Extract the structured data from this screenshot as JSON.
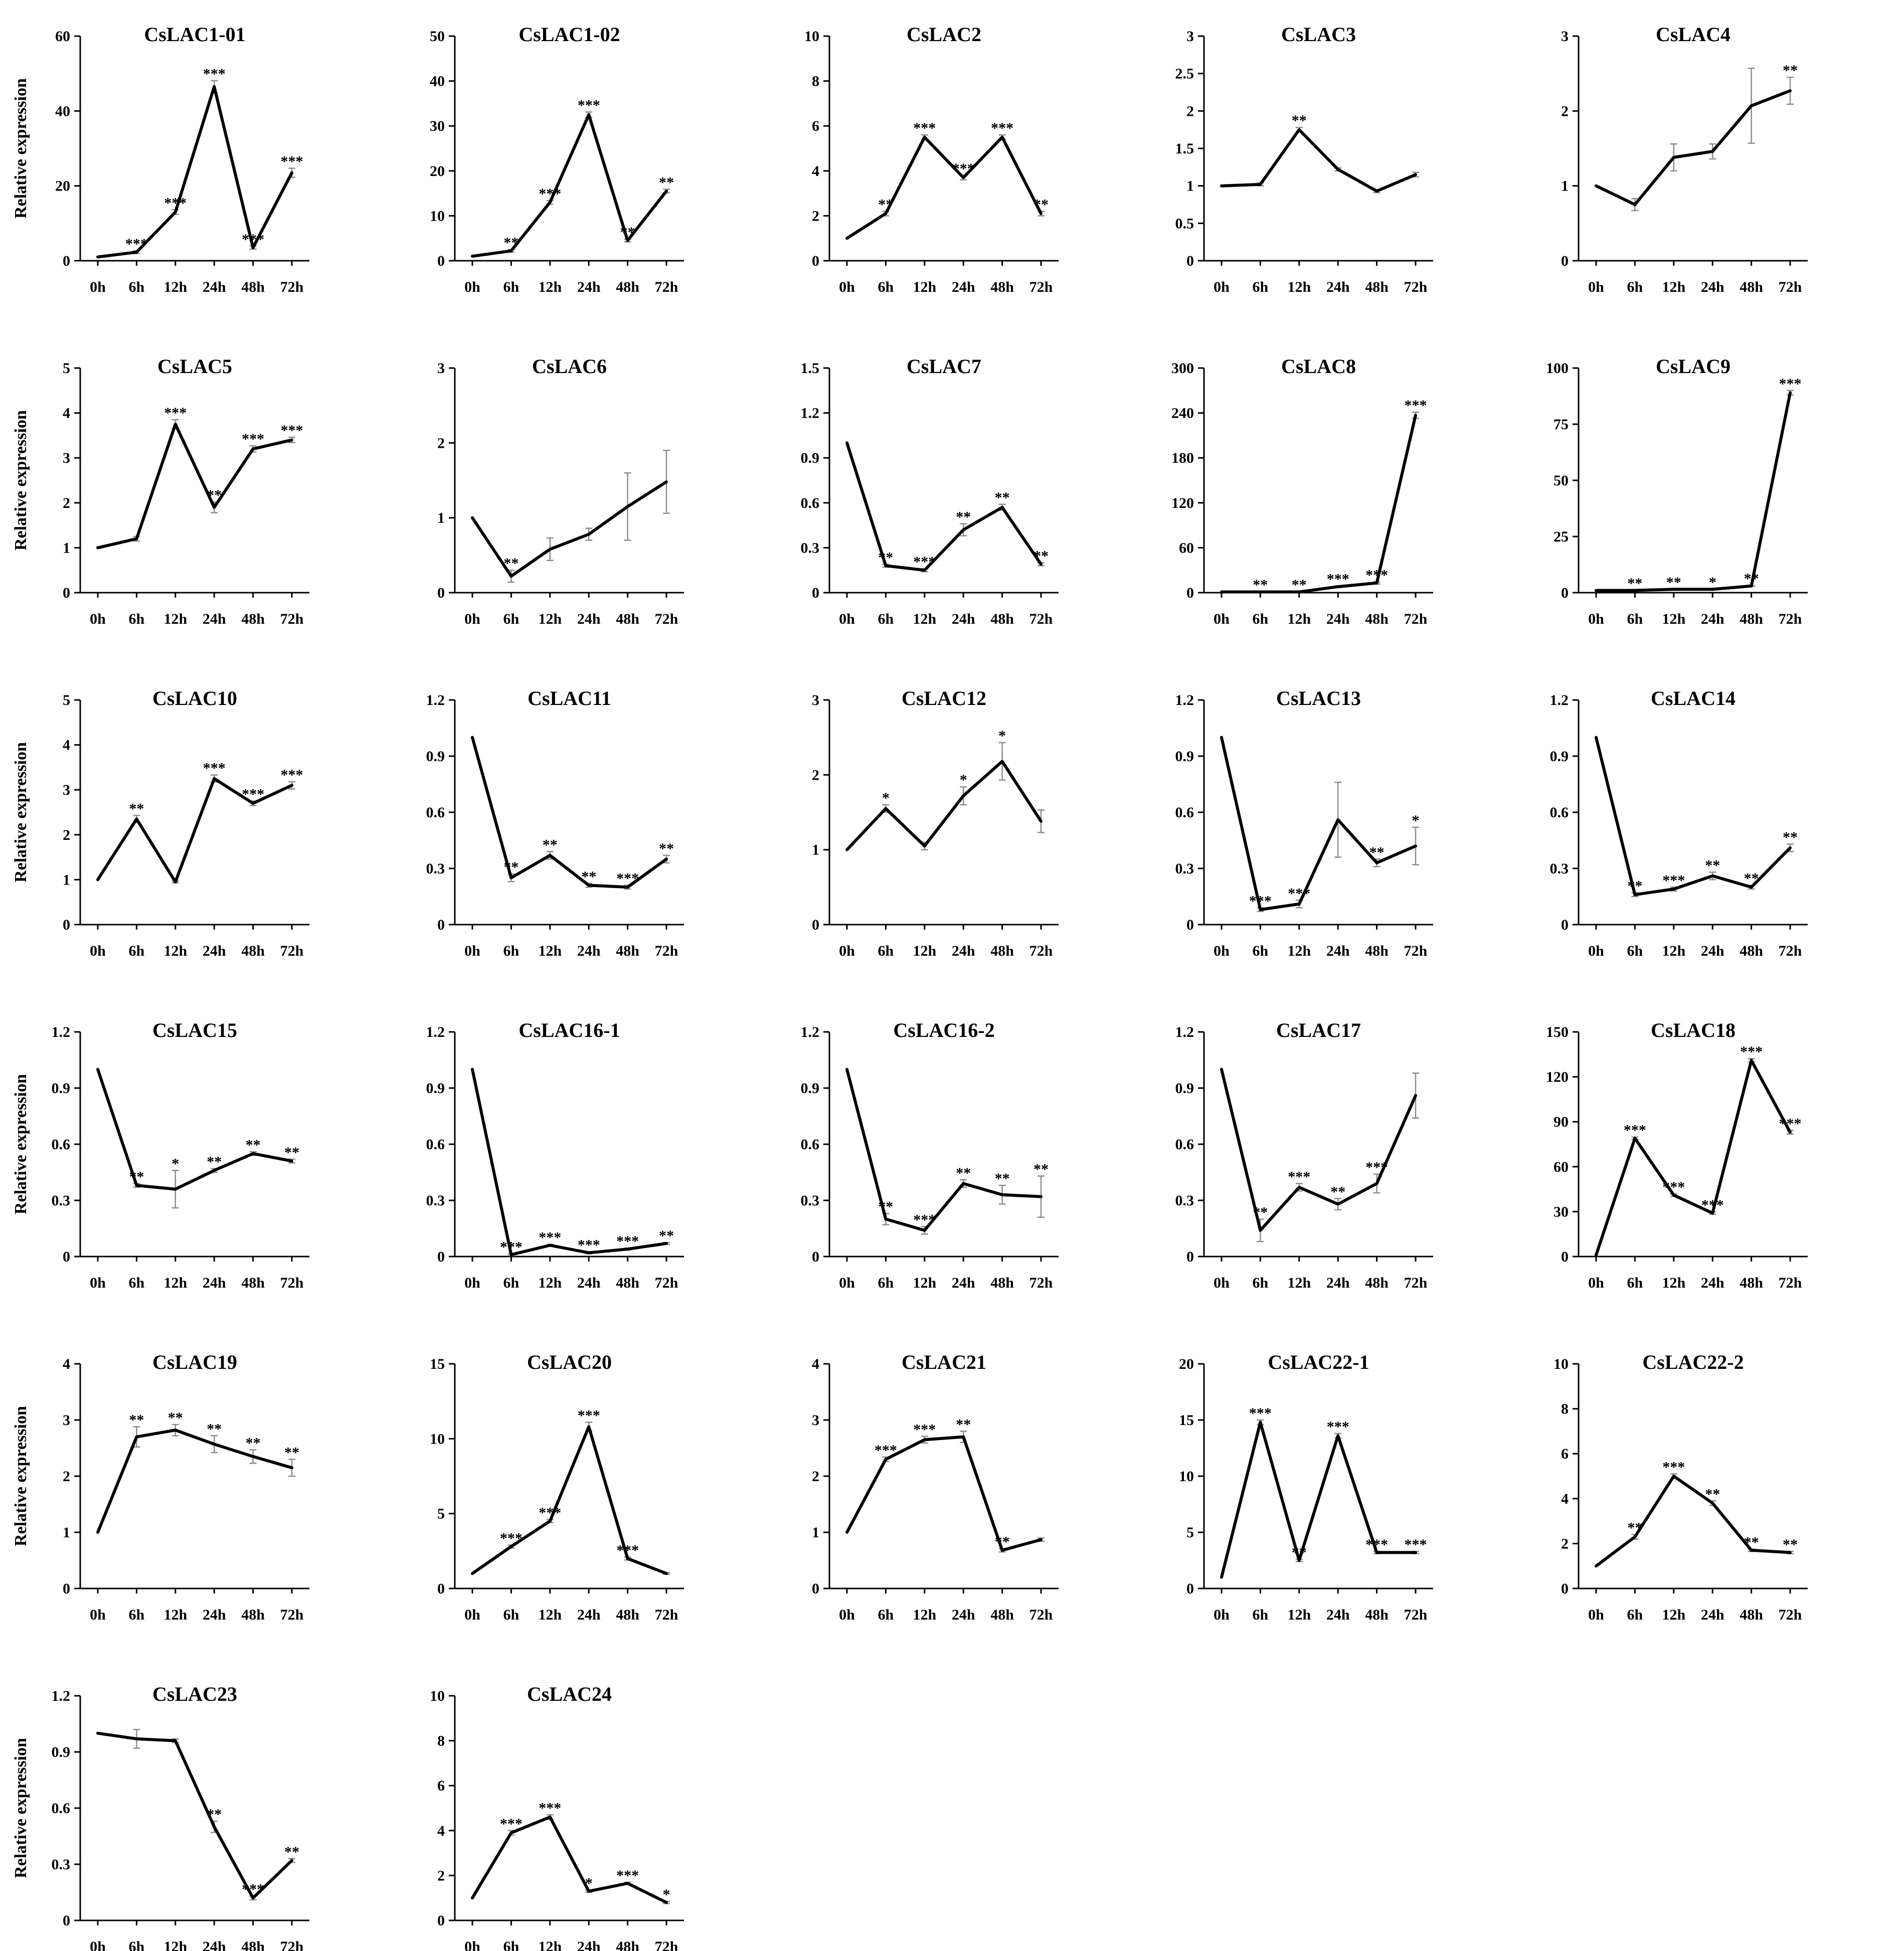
{
  "chart_data": [
    {
      "type": "line",
      "title": "CsLAC1-01",
      "ylabel": "Relative expression",
      "categories": [
        "0h",
        "6h",
        "12h",
        "24h",
        "48h",
        "72h"
      ],
      "ylim": [
        0,
        60
      ],
      "yticks": [
        0,
        20,
        40,
        60
      ],
      "values": [
        1,
        2.3,
        13,
        46.5,
        3.5,
        23.5
      ],
      "errors": [
        0,
        0.4,
        0.6,
        1.6,
        0.4,
        1.2
      ],
      "significance": [
        "",
        "***",
        "***",
        "***",
        "***",
        "***"
      ]
    },
    {
      "type": "line",
      "title": "CsLAC1-02",
      "ylabel": "",
      "categories": [
        "0h",
        "6h",
        "12h",
        "24h",
        "48h",
        "72h"
      ],
      "ylim": [
        0,
        50
      ],
      "yticks": [
        0,
        10,
        20,
        30,
        40,
        50
      ],
      "values": [
        1,
        2.2,
        13,
        32.5,
        4.5,
        15.5
      ],
      "errors": [
        0,
        0.3,
        0.4,
        0.6,
        0.3,
        0.4
      ],
      "significance": [
        "",
        "**",
        "***",
        "***",
        "**",
        "**"
      ]
    },
    {
      "type": "line",
      "title": "CsLAC2",
      "ylabel": "",
      "categories": [
        "0h",
        "6h",
        "12h",
        "24h",
        "48h",
        "72h"
      ],
      "ylim": [
        0,
        10
      ],
      "yticks": [
        0,
        2,
        4,
        6,
        8,
        10
      ],
      "values": [
        1,
        2.1,
        5.5,
        3.7,
        5.5,
        2.1
      ],
      "errors": [
        0,
        0.1,
        0.1,
        0.1,
        0.1,
        0.1
      ],
      "significance": [
        "",
        "**",
        "***",
        "***",
        "***",
        "**"
      ]
    },
    {
      "type": "line",
      "title": "CsLAC3",
      "ylabel": "",
      "categories": [
        "0h",
        "6h",
        "12h",
        "24h",
        "48h",
        "72h"
      ],
      "ylim": [
        0,
        3
      ],
      "yticks": [
        0,
        0.5,
        1,
        1.5,
        2,
        2.5,
        3
      ],
      "values": [
        1,
        1.02,
        1.75,
        1.22,
        0.93,
        1.15
      ],
      "errors": [
        0,
        0.02,
        0.03,
        0.02,
        0.02,
        0.03
      ],
      "significance": [
        "",
        "",
        "**",
        "",
        "",
        ""
      ]
    },
    {
      "type": "line",
      "title": "CsLAC4",
      "ylabel": "",
      "categories": [
        "0h",
        "6h",
        "12h",
        "24h",
        "48h",
        "72h"
      ],
      "ylim": [
        0,
        3
      ],
      "yticks": [
        0,
        1,
        2,
        3
      ],
      "values": [
        1,
        0.75,
        1.38,
        1.46,
        2.07,
        2.27
      ],
      "errors": [
        0,
        0.08,
        0.18,
        0.1,
        0.5,
        0.18
      ],
      "significance": [
        "",
        "",
        "",
        "",
        "",
        "**"
      ]
    },
    {
      "type": "line",
      "title": "CsLAC5",
      "ylabel": "Relative expression",
      "categories": [
        "0h",
        "6h",
        "12h",
        "24h",
        "48h",
        "72h"
      ],
      "ylim": [
        0,
        5
      ],
      "yticks": [
        0,
        1,
        2,
        3,
        4,
        5
      ],
      "values": [
        1,
        1.2,
        3.75,
        1.9,
        3.2,
        3.4
      ],
      "errors": [
        0,
        0.05,
        0.1,
        0.12,
        0.07,
        0.06
      ],
      "significance": [
        "",
        "",
        "***",
        "**",
        "***",
        "***"
      ]
    },
    {
      "type": "line",
      "title": "CsLAC6",
      "ylabel": "",
      "categories": [
        "0h",
        "6h",
        "12h",
        "24h",
        "48h",
        "72h"
      ],
      "ylim": [
        0,
        3
      ],
      "yticks": [
        0,
        1,
        2,
        3
      ],
      "values": [
        1,
        0.22,
        0.58,
        0.78,
        1.15,
        1.48
      ],
      "errors": [
        0,
        0.08,
        0.15,
        0.08,
        0.45,
        0.42
      ],
      "significance": [
        "",
        "**",
        "",
        "",
        "",
        ""
      ]
    },
    {
      "type": "line",
      "title": "CsLAC7",
      "ylabel": "",
      "categories": [
        "0h",
        "6h",
        "12h",
        "24h",
        "48h",
        "72h"
      ],
      "ylim": [
        0,
        1.5
      ],
      "yticks": [
        0,
        0.3,
        0.6,
        0.9,
        1.2,
        1.5
      ],
      "values": [
        1,
        0.18,
        0.15,
        0.42,
        0.57,
        0.19
      ],
      "errors": [
        0,
        0.01,
        0.01,
        0.04,
        0.02,
        0.01
      ],
      "significance": [
        "",
        "**",
        "***",
        "**",
        "**",
        "**"
      ]
    },
    {
      "type": "line",
      "title": "CsLAC8",
      "ylabel": "",
      "categories": [
        "0h",
        "6h",
        "12h",
        "24h",
        "48h",
        "72h"
      ],
      "ylim": [
        0,
        300
      ],
      "yticks": [
        0,
        60,
        120,
        180,
        240,
        300
      ],
      "values": [
        1,
        1,
        1,
        8,
        13,
        237
      ],
      "errors": [
        0,
        0.2,
        0.2,
        1,
        1.5,
        4
      ],
      "significance": [
        "",
        "**",
        "**",
        "***",
        "***",
        "***"
      ]
    },
    {
      "type": "line",
      "title": "CsLAC9",
      "ylabel": "",
      "categories": [
        "0h",
        "6h",
        "12h",
        "24h",
        "48h",
        "72h"
      ],
      "ylim": [
        0,
        100
      ],
      "yticks": [
        0,
        25,
        50,
        75,
        100
      ],
      "values": [
        1,
        1,
        1.5,
        1.5,
        3,
        89
      ],
      "errors": [
        0,
        0.1,
        0.1,
        0.1,
        0.2,
        1
      ],
      "significance": [
        "",
        "**",
        "**",
        "*",
        "**",
        "***"
      ]
    },
    {
      "type": "line",
      "title": "CsLAC10",
      "ylabel": "Relative expression",
      "categories": [
        "0h",
        "6h",
        "12h",
        "24h",
        "48h",
        "72h"
      ],
      "ylim": [
        0,
        5
      ],
      "yticks": [
        0,
        1,
        2,
        3,
        4,
        5
      ],
      "values": [
        1,
        2.35,
        0.95,
        3.25,
        2.7,
        3.1
      ],
      "errors": [
        0,
        0.08,
        0.02,
        0.08,
        0.05,
        0.08
      ],
      "significance": [
        "",
        "**",
        "",
        "***",
        "***",
        "***"
      ]
    },
    {
      "type": "line",
      "title": "CsLAC11",
      "ylabel": "",
      "categories": [
        "0h",
        "6h",
        "12h",
        "24h",
        "48h",
        "72h"
      ],
      "ylim": [
        0,
        1.2
      ],
      "yticks": [
        0,
        0.3,
        0.6,
        0.9,
        1.2
      ],
      "values": [
        1,
        0.25,
        0.37,
        0.21,
        0.2,
        0.35
      ],
      "errors": [
        0,
        0.02,
        0.02,
        0.01,
        0.01,
        0.02
      ],
      "significance": [
        "",
        "**",
        "**",
        "**",
        "***",
        "**"
      ]
    },
    {
      "type": "line",
      "title": "CsLAC12",
      "ylabel": "",
      "categories": [
        "0h",
        "6h",
        "12h",
        "24h",
        "48h",
        "72h"
      ],
      "ylim": [
        0,
        3
      ],
      "yticks": [
        0,
        1,
        2,
        3
      ],
      "values": [
        1,
        1.55,
        1.05,
        1.72,
        2.18,
        1.38
      ],
      "errors": [
        0,
        0.05,
        0.05,
        0.12,
        0.25,
        0.15
      ],
      "significance": [
        "",
        "*",
        "",
        "*",
        "*",
        ""
      ]
    },
    {
      "type": "line",
      "title": "CsLAC13",
      "ylabel": "",
      "categories": [
        "0h",
        "6h",
        "12h",
        "24h",
        "48h",
        "72h"
      ],
      "ylim": [
        0,
        1.2
      ],
      "yticks": [
        0,
        0.3,
        0.6,
        0.9,
        1.2
      ],
      "values": [
        1,
        0.08,
        0.11,
        0.56,
        0.33,
        0.42
      ],
      "errors": [
        0,
        0.01,
        0.02,
        0.2,
        0.02,
        0.1
      ],
      "significance": [
        "",
        "***",
        "***",
        "",
        "**",
        "*"
      ]
    },
    {
      "type": "line",
      "title": "CsLAC14",
      "ylabel": "",
      "categories": [
        "0h",
        "6h",
        "12h",
        "24h",
        "48h",
        "72h"
      ],
      "ylim": [
        0,
        1.2
      ],
      "yticks": [
        0,
        0.3,
        0.6,
        0.9,
        1.2
      ],
      "values": [
        1,
        0.16,
        0.19,
        0.26,
        0.2,
        0.41
      ],
      "errors": [
        0,
        0.01,
        0.01,
        0.02,
        0.01,
        0.02
      ],
      "significance": [
        "",
        "**",
        "***",
        "**",
        "**",
        "**"
      ]
    },
    {
      "type": "line",
      "title": "CsLAC15",
      "ylabel": "Relative expression",
      "categories": [
        "0h",
        "6h",
        "12h",
        "24h",
        "48h",
        "72h"
      ],
      "ylim": [
        0,
        1.2
      ],
      "yticks": [
        0,
        0.3,
        0.6,
        0.9,
        1.2
      ],
      "values": [
        1,
        0.38,
        0.36,
        0.46,
        0.55,
        0.51
      ],
      "errors": [
        0,
        0.01,
        0.1,
        0.01,
        0.01,
        0.01
      ],
      "significance": [
        "",
        "**",
        "*",
        "**",
        "**",
        "**"
      ]
    },
    {
      "type": "line",
      "title": "CsLAC16-1",
      "ylabel": "",
      "categories": [
        "0h",
        "6h",
        "12h",
        "24h",
        "48h",
        "72h"
      ],
      "ylim": [
        0,
        1.2
      ],
      "yticks": [
        0,
        0.3,
        0.6,
        0.9,
        1.2
      ],
      "values": [
        1,
        0.01,
        0.06,
        0.02,
        0.04,
        0.07
      ],
      "errors": [
        0,
        0.005,
        0.005,
        0.005,
        0.005,
        0.005
      ],
      "significance": [
        "",
        "***",
        "***",
        "***",
        "***",
        "**"
      ]
    },
    {
      "type": "line",
      "title": "CsLAC16-2",
      "ylabel": "",
      "categories": [
        "0h",
        "6h",
        "12h",
        "24h",
        "48h",
        "72h"
      ],
      "ylim": [
        0,
        1.2
      ],
      "yticks": [
        0,
        0.3,
        0.6,
        0.9,
        1.2
      ],
      "values": [
        1,
        0.2,
        0.14,
        0.39,
        0.33,
        0.32
      ],
      "errors": [
        0,
        0.03,
        0.02,
        0.02,
        0.05,
        0.11
      ],
      "significance": [
        "",
        "**",
        "***",
        "**",
        "**",
        "**"
      ]
    },
    {
      "type": "line",
      "title": "CsLAC17",
      "ylabel": "",
      "categories": [
        "0h",
        "6h",
        "12h",
        "24h",
        "48h",
        "72h"
      ],
      "ylim": [
        0,
        1.2
      ],
      "yticks": [
        0,
        0.3,
        0.6,
        0.9,
        1.2
      ],
      "values": [
        1,
        0.14,
        0.37,
        0.28,
        0.39,
        0.86
      ],
      "errors": [
        0,
        0.06,
        0.02,
        0.03,
        0.05,
        0.12
      ],
      "significance": [
        "",
        "**",
        "***",
        "**",
        "***",
        ""
      ]
    },
    {
      "type": "line",
      "title": "CsLAC18",
      "ylabel": "",
      "categories": [
        "0h",
        "6h",
        "12h",
        "24h",
        "48h",
        "72h"
      ],
      "ylim": [
        0,
        150
      ],
      "yticks": [
        0,
        30,
        60,
        90,
        120,
        150
      ],
      "values": [
        1,
        79,
        41,
        29,
        131,
        83
      ],
      "errors": [
        0,
        0.8,
        0.8,
        0.8,
        1.2,
        1.2
      ],
      "significance": [
        "",
        "***",
        "***",
        "***",
        "***",
        "***"
      ]
    },
    {
      "type": "line",
      "title": "CsLAC19",
      "ylabel": "Relative expression",
      "categories": [
        "0h",
        "6h",
        "12h",
        "24h",
        "48h",
        "72h"
      ],
      "ylim": [
        0,
        4
      ],
      "yticks": [
        0,
        1,
        2,
        3,
        4
      ],
      "values": [
        1,
        2.7,
        2.82,
        2.57,
        2.35,
        2.15
      ],
      "errors": [
        0,
        0.18,
        0.1,
        0.15,
        0.12,
        0.15
      ],
      "significance": [
        "",
        "**",
        "**",
        "**",
        "**",
        "**"
      ]
    },
    {
      "type": "line",
      "title": "CsLAC20",
      "ylabel": "",
      "categories": [
        "0h",
        "6h",
        "12h",
        "24h",
        "48h",
        "72h"
      ],
      "ylim": [
        0,
        15
      ],
      "yticks": [
        0,
        5,
        10,
        15
      ],
      "values": [
        1,
        2.8,
        4.5,
        10.8,
        2,
        1
      ],
      "errors": [
        0,
        0.1,
        0.1,
        0.3,
        0.1,
        0.05
      ],
      "significance": [
        "",
        "***",
        "***",
        "***",
        "***",
        ""
      ]
    },
    {
      "type": "line",
      "title": "CsLAC21",
      "ylabel": "",
      "categories": [
        "0h",
        "6h",
        "12h",
        "24h",
        "48h",
        "72h"
      ],
      "ylim": [
        0,
        4
      ],
      "yticks": [
        0,
        1,
        2,
        3,
        4
      ],
      "values": [
        1,
        2.3,
        2.65,
        2.7,
        0.68,
        0.87
      ],
      "errors": [
        0,
        0.04,
        0.06,
        0.1,
        0.03,
        0.03
      ],
      "significance": [
        "",
        "***",
        "***",
        "**",
        "**",
        ""
      ]
    },
    {
      "type": "line",
      "title": "CsLAC22-1",
      "ylabel": "",
      "categories": [
        "0h",
        "6h",
        "12h",
        "24h",
        "48h",
        "72h"
      ],
      "ylim": [
        0,
        20
      ],
      "yticks": [
        0,
        5,
        10,
        15,
        20
      ],
      "values": [
        1,
        14.8,
        2.5,
        13.6,
        3.2,
        3.2
      ],
      "errors": [
        0,
        0.2,
        0.1,
        0.2,
        0.1,
        0.1
      ],
      "significance": [
        "",
        "***",
        "**",
        "***",
        "***",
        "***"
      ]
    },
    {
      "type": "line",
      "title": "CsLAC22-2",
      "ylabel": "",
      "categories": [
        "0h",
        "6h",
        "12h",
        "24h",
        "48h",
        "72h"
      ],
      "ylim": [
        0,
        10
      ],
      "yticks": [
        0,
        2,
        4,
        6,
        8,
        10
      ],
      "values": [
        1,
        2.3,
        5,
        3.8,
        1.7,
        1.6
      ],
      "errors": [
        0,
        0.1,
        0.1,
        0.1,
        0.05,
        0.05
      ],
      "significance": [
        "",
        "**",
        "***",
        "**",
        "**",
        "**"
      ]
    },
    {
      "type": "line",
      "title": "CsLAC23",
      "ylabel": "Relative expression",
      "categories": [
        "0h",
        "6h",
        "12h",
        "24h",
        "48h",
        "72h"
      ],
      "ylim": [
        0,
        1.2
      ],
      "yticks": [
        0,
        0.3,
        0.6,
        0.9,
        1.2
      ],
      "values": [
        1,
        0.97,
        0.96,
        0.5,
        0.12,
        0.32
      ],
      "errors": [
        0,
        0.05,
        0.01,
        0.03,
        0.01,
        0.01
      ],
      "significance": [
        "",
        "",
        "",
        "**",
        "***",
        "**"
      ]
    },
    {
      "type": "line",
      "title": "CsLAC24",
      "ylabel": "",
      "categories": [
        "0h",
        "6h",
        "12h",
        "24h",
        "48h",
        "72h"
      ],
      "ylim": [
        0,
        10
      ],
      "yticks": [
        0,
        2,
        4,
        6,
        8,
        10
      ],
      "values": [
        1,
        3.9,
        4.6,
        1.3,
        1.65,
        0.8
      ],
      "errors": [
        0,
        0.1,
        0.1,
        0.05,
        0.05,
        0.05
      ],
      "significance": [
        "",
        "***",
        "***",
        "*",
        "***",
        "*"
      ]
    }
  ]
}
